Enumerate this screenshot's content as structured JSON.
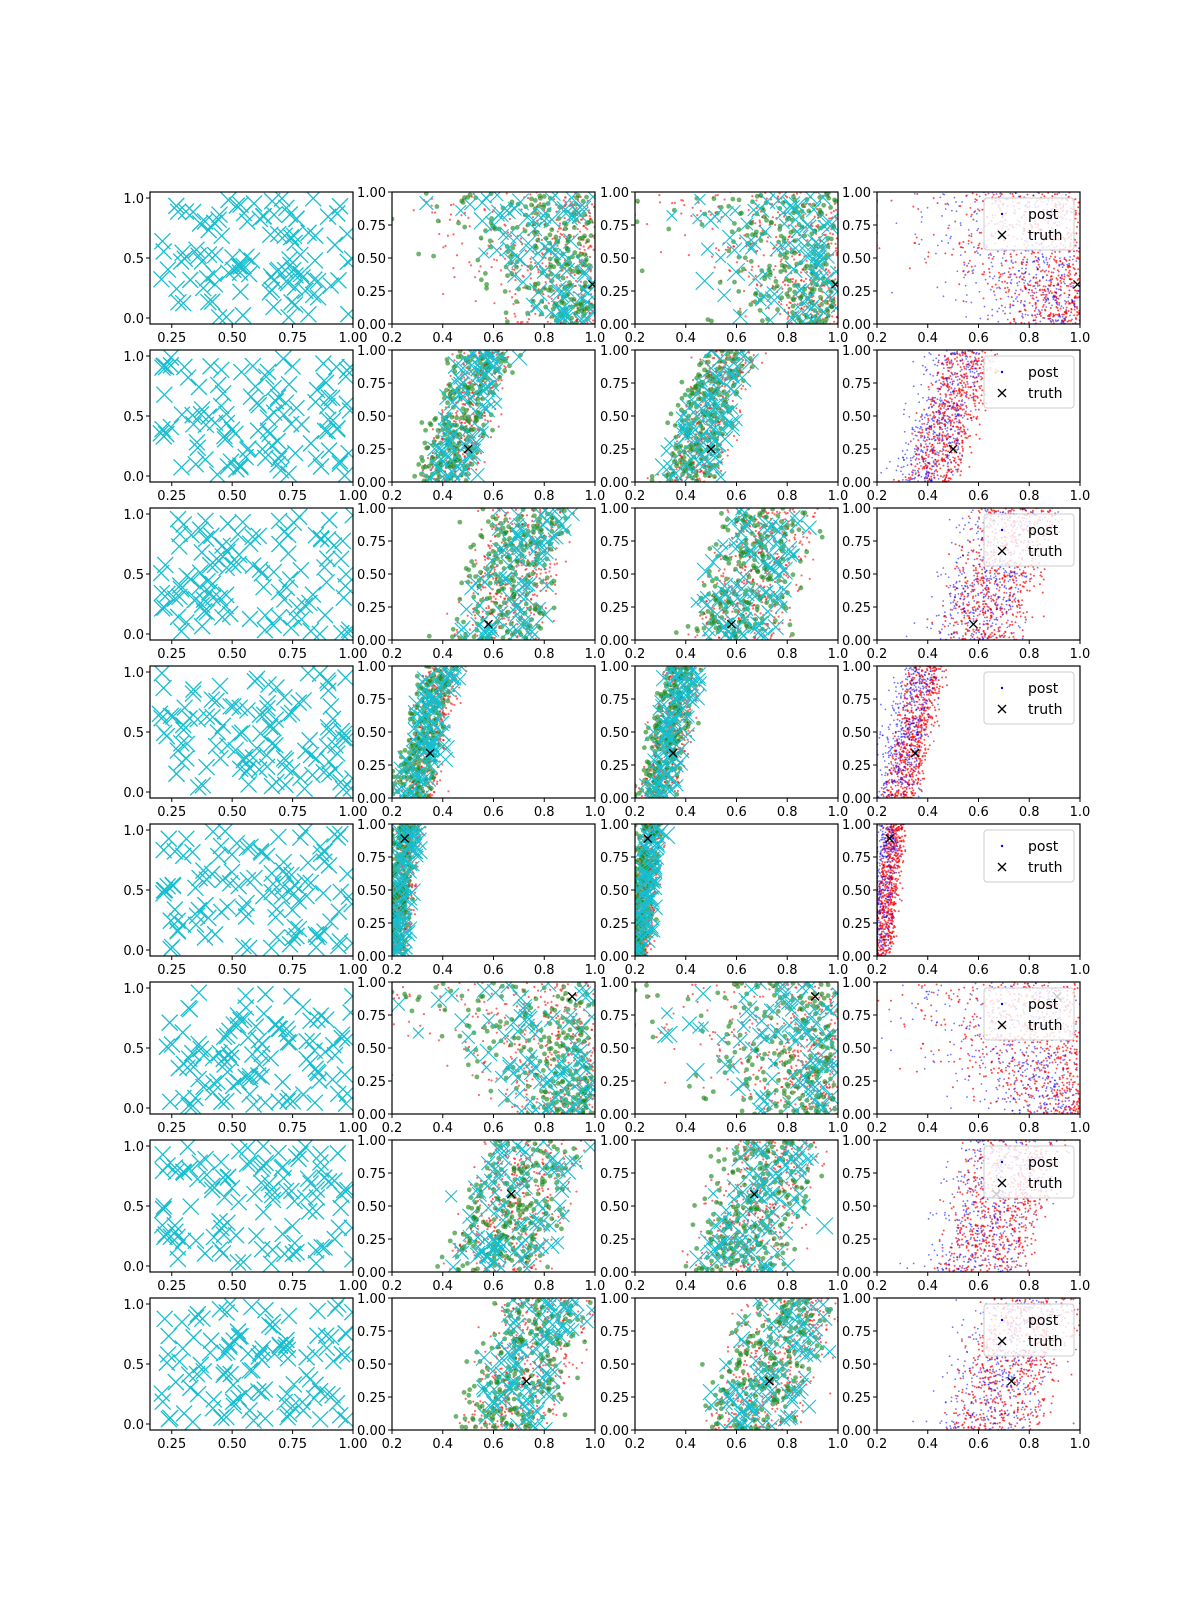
{
  "chart_data": {
    "type": "scatter",
    "layout": {
      "rows": 8,
      "cols": 4
    },
    "panel_types": [
      "prior-samples",
      "overlay-3series",
      "overlay-3series",
      "posterior-vs-truth"
    ],
    "legend": {
      "entries": [
        "post",
        "truth"
      ],
      "placement": "upper-right",
      "panels": "column 4"
    },
    "axes": {
      "col1": {
        "xlim": [
          0.16,
          1.0
        ],
        "ylim": [
          -0.05,
          1.05
        ],
        "xticks": [
          "0.25",
          "0.50",
          "0.75",
          "1.00"
        ],
        "yticks": [
          "0.0",
          "0.5",
          "1.0"
        ]
      },
      "col2to4": {
        "xlim": [
          0.2,
          1.0
        ],
        "ylim": [
          0.0,
          1.0
        ],
        "xticks": [
          "0.2",
          "0.4",
          "0.6",
          "0.8",
          "1.0"
        ],
        "yticks": [
          "0.00",
          "0.25",
          "0.50",
          "0.75",
          "1.00"
        ]
      }
    },
    "series_colors": {
      "prior": "#17becf",
      "red": "#ff0000",
      "green": "#228b22",
      "cyan": "#17becf",
      "blue": "#0000ff",
      "truth": "#000000"
    },
    "rows": [
      {
        "truth": [
          0.99,
          0.3
        ],
        "shape": "broad",
        "center_x": 0.83,
        "spread": 0.14
      },
      {
        "truth": [
          0.5,
          0.25
        ],
        "shape": "band",
        "center_x": 0.45,
        "slope": 0.33,
        "width": 0.18
      },
      {
        "truth": [
          0.58,
          0.12
        ],
        "shape": "band",
        "center_x": 0.62,
        "slope": 0.3,
        "width": 0.28
      },
      {
        "truth": [
          0.35,
          0.34
        ],
        "shape": "band",
        "center_x": 0.33,
        "slope": 0.22,
        "width": 0.12
      },
      {
        "truth": [
          0.25,
          0.89
        ],
        "shape": "band",
        "center_x": 0.27,
        "slope": 0.12,
        "width": 0.07
      },
      {
        "truth": [
          0.91,
          0.89
        ],
        "shape": "broad",
        "center_x": 0.8,
        "spread": 0.15
      },
      {
        "truth": [
          0.67,
          0.59
        ],
        "shape": "band",
        "center_x": 0.7,
        "slope": 0.32,
        "width": 0.3
      },
      {
        "truth": [
          0.73,
          0.37
        ],
        "shape": "band",
        "center_x": 0.72,
        "slope": 0.35,
        "width": 0.3
      }
    ]
  }
}
